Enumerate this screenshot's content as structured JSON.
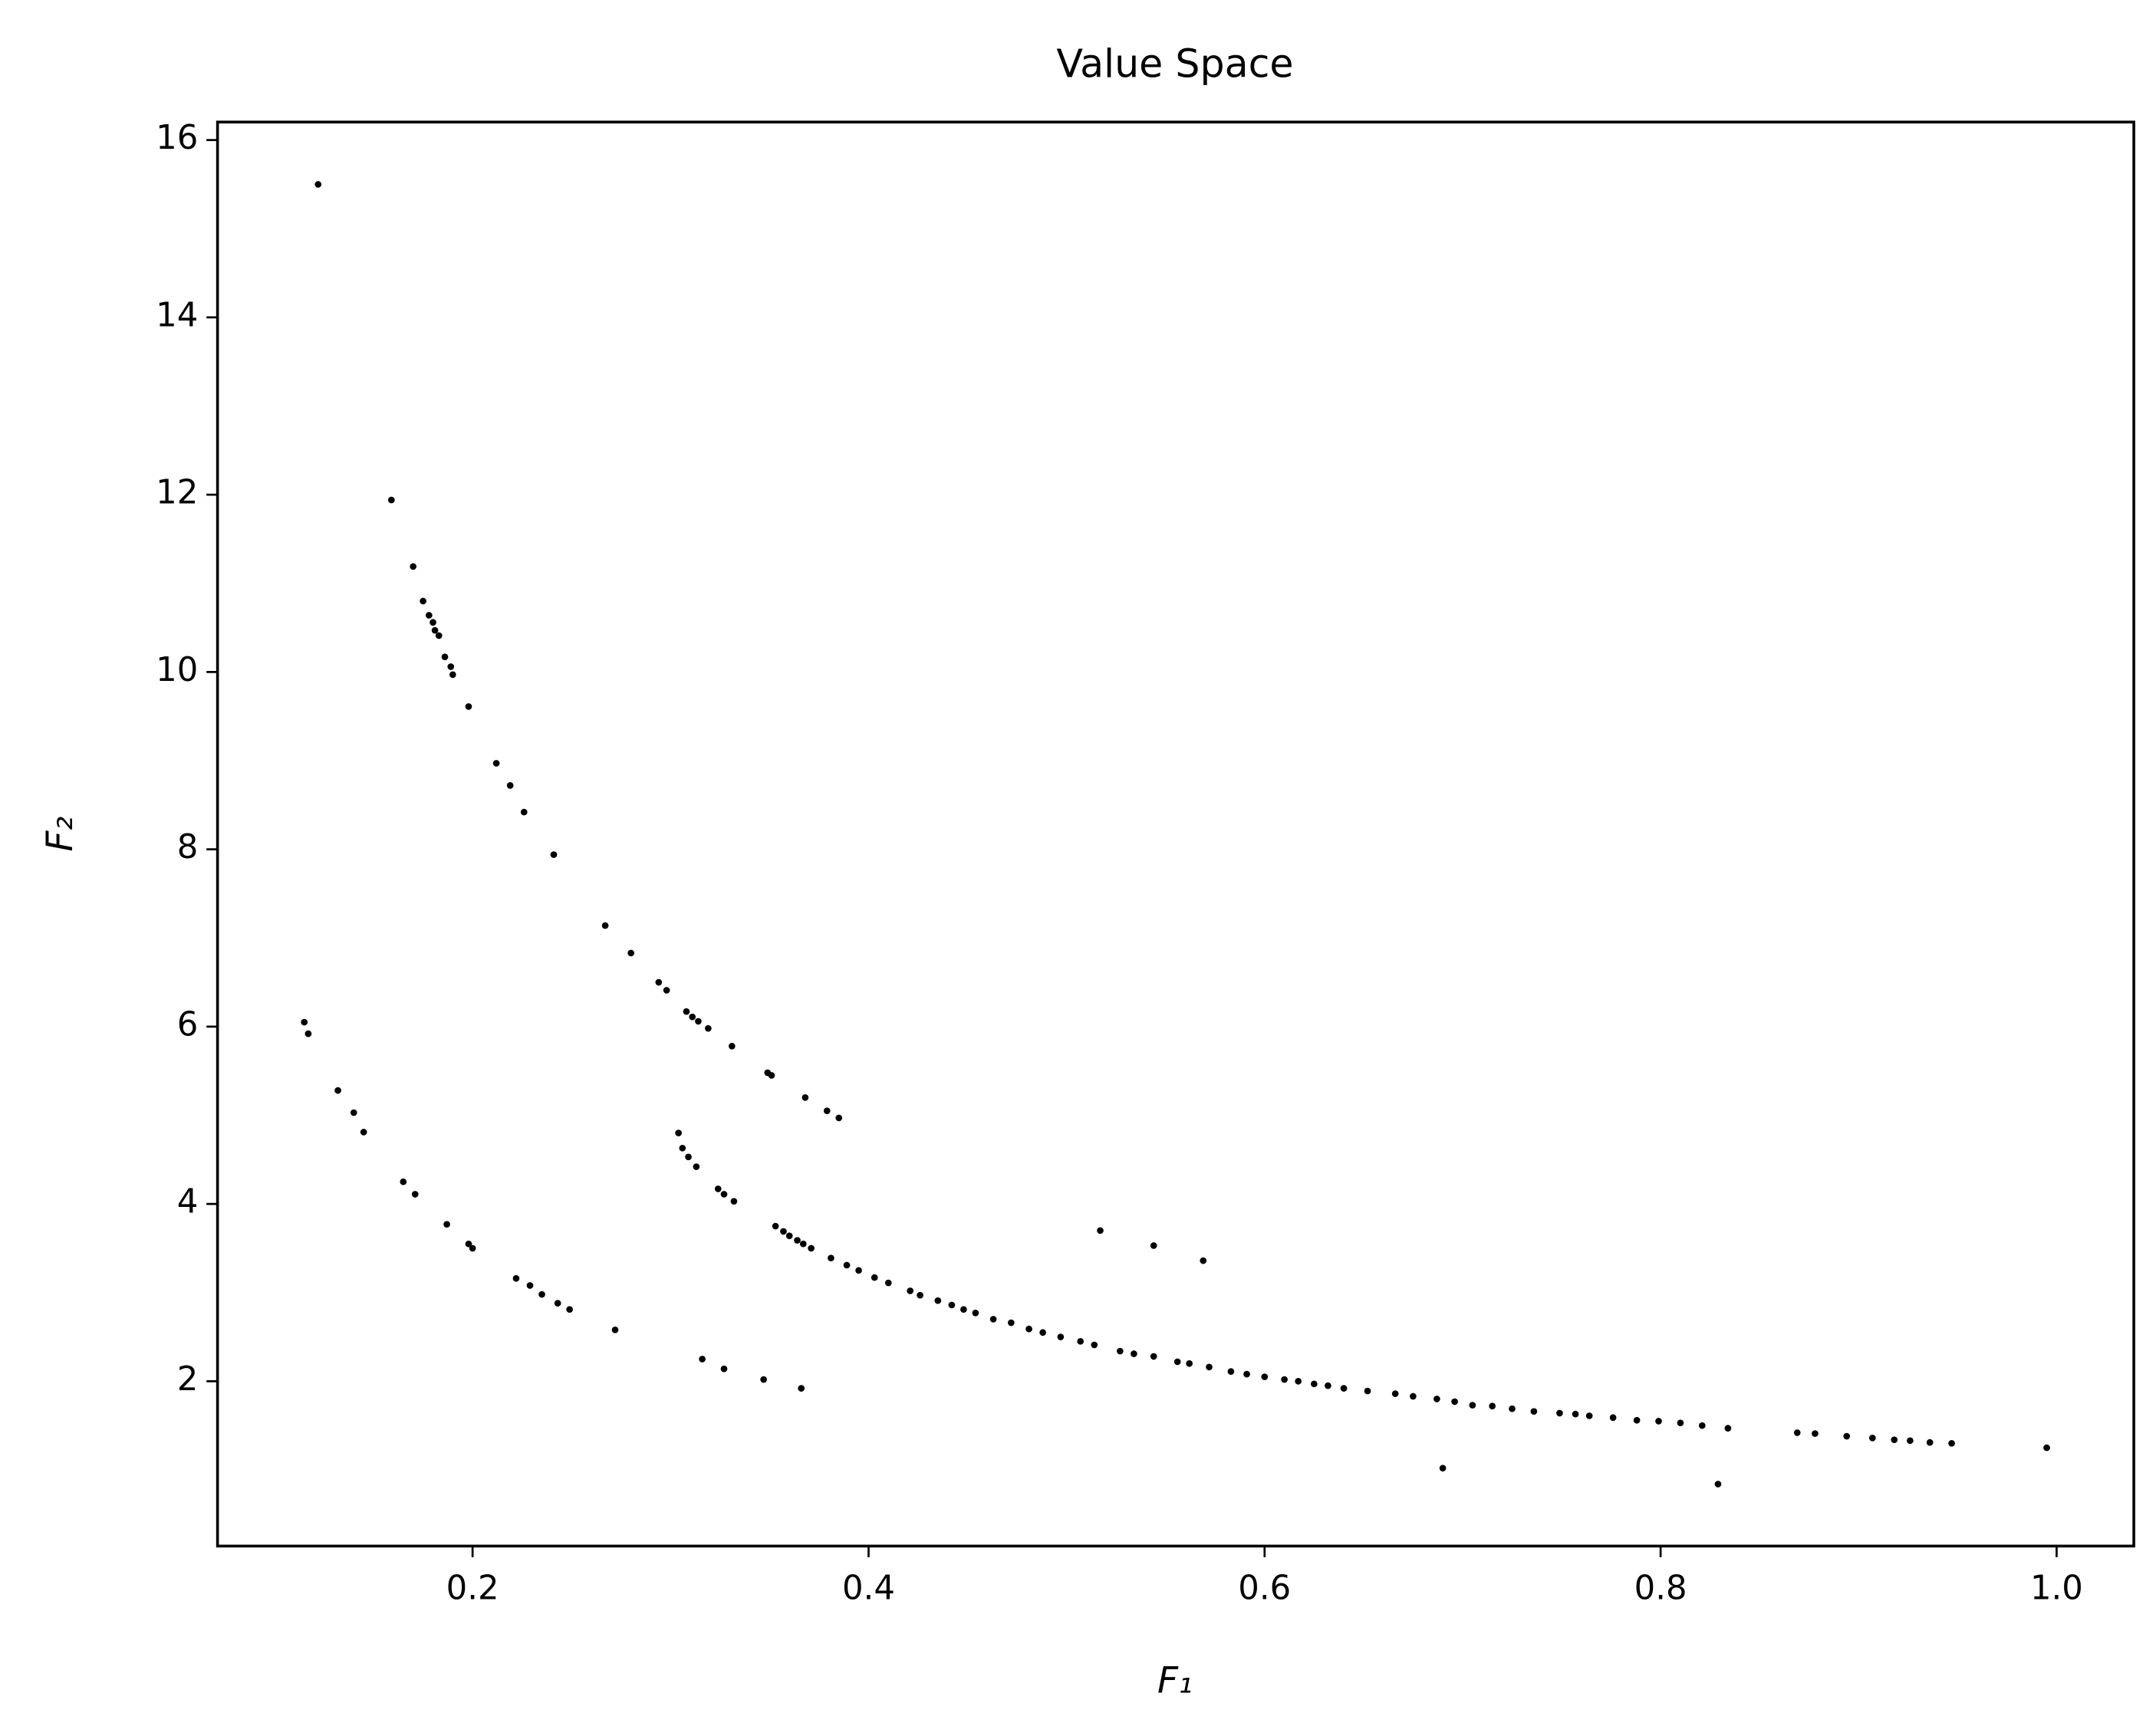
{
  "chart_data": {
    "type": "scatter",
    "title": "Value Space",
    "xlabel": "F₁",
    "ylabel": "F₂",
    "xlim": [
      0.0712,
      1.039
    ],
    "ylim": [
      0.141,
      16.203
    ],
    "xticks": [
      0.2,
      0.4,
      0.6,
      0.8,
      {
        "value": 1,
        "label": "1.0"
      }
    ],
    "yticks": [
      2,
      4,
      6,
      8,
      10,
      12,
      14,
      16
    ],
    "series": [
      {
        "color": "#000000",
        "x": [
          0.122,
          0.159,
          0.17,
          0.175,
          0.178,
          0.18,
          0.181,
          0.183,
          0.186,
          0.189,
          0.19,
          0.198,
          0.212,
          0.219,
          0.226,
          0.241,
          0.267,
          0.28,
          0.294,
          0.298,
          0.308,
          0.311,
          0.314,
          0.319,
          0.331,
          0.349,
          0.351,
          0.368,
          0.379,
          0.385,
          0.115,
          0.117,
          0.132,
          0.14,
          0.145,
          0.165,
          0.171,
          0.187,
          0.198,
          0.2,
          0.222,
          0.229,
          0.235,
          0.243,
          0.249,
          0.272,
          0.316,
          0.327,
          0.347,
          0.366,
          0.304,
          0.306,
          0.309,
          0.313,
          0.324,
          0.327,
          0.332,
          0.353,
          0.357,
          0.36,
          0.364,
          0.367,
          0.371,
          0.381,
          0.389,
          0.395,
          0.403,
          0.41,
          0.421,
          0.426,
          0.435,
          0.442,
          0.448,
          0.454,
          0.463,
          0.472,
          0.481,
          0.488,
          0.497,
          0.507,
          0.514,
          0.527,
          0.534,
          0.544,
          0.556,
          0.562,
          0.572,
          0.583,
          0.591,
          0.6,
          0.61,
          0.617,
          0.625,
          0.632,
          0.64,
          0.652,
          0.666,
          0.675,
          0.687,
          0.696,
          0.705,
          0.715,
          0.725,
          0.736,
          0.749,
          0.757,
          0.764,
          0.776,
          0.788,
          0.799,
          0.81,
          0.821,
          0.834,
          0.869,
          0.878,
          0.894,
          0.907,
          0.918,
          0.926,
          0.936,
          0.947,
          0.995,
          0.517,
          0.544,
          0.569,
          0.69,
          0.829
        ],
        "y": [
          15.5,
          11.94,
          11.19,
          10.8,
          10.64,
          10.56,
          10.47,
          10.41,
          10.17,
          10.06,
          9.97,
          9.61,
          8.97,
          8.72,
          8.42,
          7.94,
          7.14,
          6.83,
          6.5,
          6.41,
          6.17,
          6.11,
          6.06,
          5.98,
          5.78,
          5.48,
          5.45,
          5.2,
          5.05,
          4.97,
          6.05,
          5.92,
          5.28,
          5.03,
          4.81,
          4.25,
          4.11,
          3.77,
          3.55,
          3.5,
          3.16,
          3.08,
          2.98,
          2.88,
          2.81,
          2.58,
          2.25,
          2.14,
          2.02,
          1.92,
          4.8,
          4.63,
          4.53,
          4.42,
          4.17,
          4.11,
          4.03,
          3.75,
          3.69,
          3.64,
          3.59,
          3.55,
          3.5,
          3.39,
          3.31,
          3.25,
          3.17,
          3.11,
          3.02,
          2.97,
          2.91,
          2.86,
          2.81,
          2.77,
          2.7,
          2.66,
          2.59,
          2.55,
          2.5,
          2.45,
          2.41,
          2.34,
          2.31,
          2.28,
          2.22,
          2.2,
          2.16,
          2.11,
          2.08,
          2.05,
          2.02,
          2.0,
          1.97,
          1.95,
          1.92,
          1.89,
          1.86,
          1.83,
          1.8,
          1.77,
          1.73,
          1.72,
          1.69,
          1.66,
          1.64,
          1.63,
          1.61,
          1.59,
          1.56,
          1.55,
          1.53,
          1.5,
          1.47,
          1.42,
          1.41,
          1.38,
          1.36,
          1.34,
          1.33,
          1.31,
          1.3,
          1.25,
          3.7,
          3.53,
          3.36,
          1.02,
          0.84
        ]
      }
    ]
  }
}
